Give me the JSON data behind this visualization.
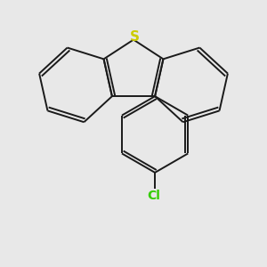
{
  "background_color": "#e8e8e8",
  "line_color": "#1a1a1a",
  "S_color": "#cccc00",
  "Cl_color": "#33cc00",
  "line_width": 1.4,
  "font_size": 10,
  "figsize": [
    3.0,
    3.0
  ],
  "dpi": 100
}
